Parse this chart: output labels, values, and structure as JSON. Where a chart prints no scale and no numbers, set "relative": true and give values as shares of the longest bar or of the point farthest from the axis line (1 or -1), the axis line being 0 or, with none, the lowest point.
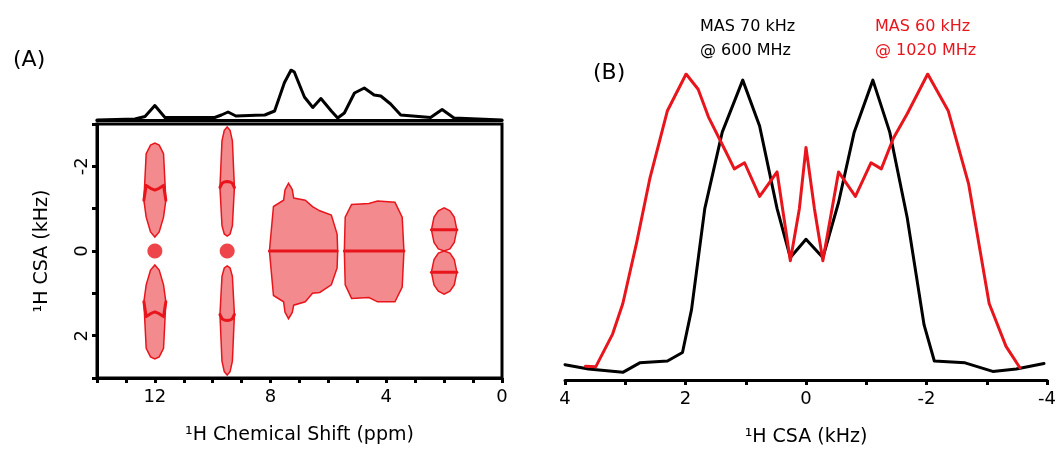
{
  "chart_data": [
    {
      "type": "line",
      "title": "(A)",
      "relative": true,
      "xlim": [
        14,
        0
      ],
      "tick_labels": false,
      "marker": "none",
      "line_style": "solid",
      "series": [
        {
          "color": "#000000",
          "x": [
            0,
            1.66,
            2.07,
            2.47,
            3.5,
            3.85,
            4.19,
            4.42,
            4.76,
            5.1,
            5.45,
            5.68,
            5.9,
            6.26,
            6.54,
            6.83,
            7.18,
            7.29,
            7.52,
            7.86,
            8.2,
            9.2,
            9.47,
            9.7,
            9.93,
            10.85,
            11.65,
            12.0,
            12.34,
            12.69,
            14
          ],
          "values": [
            0,
            0.04,
            0.21,
            0.05,
            0.1,
            0.32,
            0.48,
            0.5,
            0.64,
            0.54,
            0.14,
            0.04,
            0.18,
            0.43,
            0.25,
            0.46,
            0.96,
            1,
            0.75,
            0.18,
            0.1,
            0.08,
            0.16,
            0.1,
            0.05,
            0.05,
            0.05,
            0.29,
            0.07,
            0.02,
            0
          ]
        }
      ]
    },
    {
      "type": "line",
      "xlabel": "¹H Chemical Shift (ppm)",
      "ylabel": "¹H CSA (kHz)",
      "xlim": [
        14,
        0
      ],
      "ylim": [
        3,
        -3
      ],
      "marker": "none",
      "line_style": "solid",
      "xticks": [
        {
          "value": 14,
          "label": null
        },
        {
          "value": 13,
          "label": null
        },
        12,
        {
          "value": 11,
          "label": null
        },
        {
          "value": 10,
          "label": null
        },
        {
          "value": 9,
          "label": null
        },
        8,
        {
          "value": 7,
          "label": null
        },
        {
          "value": 6,
          "label": null
        },
        {
          "value": 5,
          "label": null
        },
        4,
        {
          "value": 3,
          "label": null
        },
        {
          "value": 2,
          "label": null
        },
        {
          "value": 1,
          "label": null
        },
        0
      ],
      "yticks": [
        {
          "value": -3,
          "label": null
        },
        -2,
        {
          "value": -1,
          "label": null
        },
        0,
        {
          "value": 1,
          "label": null
        },
        2,
        {
          "value": 3,
          "label": null
        }
      ],
      "series": [
        {
          "color": "#e8161c",
          "x": [
            12.38,
            12.3,
            12.15,
            12.0,
            11.85,
            11.7,
            11.62
          ],
          "values": [
            -1.2,
            -1.55,
            -1.48,
            -1.44,
            -1.48,
            -1.55,
            -1.2
          ],
          "lower": [
            -1.2,
            -2.3,
            -2.5,
            -2.55,
            -2.5,
            -2.3,
            -1.2
          ],
          "upper": [
            -1.2,
            -0.8,
            -0.45,
            -0.33,
            -0.45,
            -0.8,
            -1.2
          ]
        },
        {
          "type": "scatter",
          "marker": "circle",
          "color": "#e8161c",
          "x": [
            12.0,
            9.5
          ],
          "values": [
            0,
            0
          ]
        },
        {
          "color": "#e8161c",
          "x": [
            12.38,
            12.3,
            12.15,
            12.0,
            11.85,
            11.7,
            11.62
          ],
          "values": [
            1.2,
            1.55,
            1.48,
            1.44,
            1.48,
            1.55,
            1.2
          ],
          "lower": [
            1.2,
            0.8,
            0.45,
            0.33,
            0.45,
            0.8,
            1.2
          ],
          "upper": [
            1.2,
            2.3,
            2.5,
            2.55,
            2.5,
            2.3,
            1.2
          ]
        },
        {
          "color": "#e8161c",
          "x": [
            9.75,
            9.68,
            9.6,
            9.5,
            9.4,
            9.32,
            9.25
          ],
          "values": [
            -1.5,
            -1.6,
            -1.63,
            -1.64,
            -1.63,
            -1.6,
            -1.5
          ],
          "lower": [
            -1.5,
            -2.6,
            -2.85,
            -2.93,
            -2.85,
            -2.6,
            -1.5
          ],
          "upper": [
            -1.5,
            -0.6,
            -0.4,
            -0.35,
            -0.4,
            -0.6,
            -1.5
          ]
        },
        {
          "color": "#e8161c",
          "x": [
            9.75,
            9.68,
            9.6,
            9.5,
            9.4,
            9.32,
            9.25
          ],
          "values": [
            1.5,
            1.6,
            1.63,
            1.64,
            1.63,
            1.6,
            1.5
          ],
          "lower": [
            1.5,
            0.6,
            0.4,
            0.35,
            0.4,
            0.6,
            1.5
          ],
          "upper": [
            1.5,
            2.6,
            2.85,
            2.93,
            2.85,
            2.6,
            1.5
          ]
        },
        {
          "color": "#e8161c",
          "x": [
            8.04,
            7.9,
            7.55,
            7.5,
            7.38,
            7.25,
            7.2,
            6.8,
            6.55,
            6.3,
            5.9,
            5.7,
            5.68
          ],
          "values": [
            0,
            0,
            0,
            0,
            0,
            0,
            0,
            0,
            0,
            0,
            0,
            0,
            0
          ],
          "lower": [
            0,
            -1.05,
            -1.2,
            -1.45,
            -1.6,
            -1.45,
            -1.25,
            -1.2,
            -1.05,
            -0.95,
            -0.85,
            -0.4,
            0
          ],
          "upper": [
            0,
            1.05,
            1.2,
            1.45,
            1.6,
            1.45,
            1.28,
            1.2,
            1.0,
            0.98,
            0.8,
            0.4,
            0
          ]
        },
        {
          "color": "#e8161c",
          "x": [
            5.45,
            5.42,
            5.2,
            4.6,
            4.3,
            3.7,
            3.45,
            3.39
          ],
          "values": [
            0,
            0,
            0,
            0,
            0,
            0,
            0,
            0
          ],
          "lower": [
            0,
            -0.8,
            -1.1,
            -1.12,
            -1.18,
            -1.15,
            -0.8,
            0
          ],
          "upper": [
            0,
            0.8,
            1.12,
            1.1,
            1.2,
            1.2,
            0.85,
            0
          ]
        },
        {
          "color": "#e8161c",
          "x": [
            2.44,
            2.35,
            2.2,
            2.0,
            1.8,
            1.65,
            1.56
          ],
          "values": [
            -0.5,
            -0.5,
            -0.5,
            -0.5,
            -0.5,
            -0.5,
            -0.5
          ],
          "lower": [
            -0.5,
            -0.8,
            -0.95,
            -1.02,
            -0.95,
            -0.8,
            -0.5
          ],
          "upper": [
            -0.5,
            -0.2,
            -0.05,
            0,
            -0.05,
            -0.2,
            -0.5
          ]
        },
        {
          "color": "#e8161c",
          "x": [
            2.44,
            2.35,
            2.2,
            2.0,
            1.8,
            1.65,
            1.56
          ],
          "values": [
            0.5,
            0.5,
            0.5,
            0.5,
            0.5,
            0.5,
            0.5
          ],
          "lower": [
            0.5,
            0.2,
            0.05,
            0,
            0.05,
            0.2,
            0.5
          ],
          "upper": [
            0.5,
            0.8,
            0.95,
            1.02,
            0.95,
            0.8,
            0.5
          ]
        }
      ]
    },
    {
      "type": "line",
      "title": "(B)",
      "xlabel": "¹H CSA (kHz)",
      "relative": true,
      "xlim": [
        4,
        -4
      ],
      "legend": "top",
      "marker": "none",
      "line_style": "solid",
      "xticks": [
        4,
        {
          "value": 3,
          "label": null
        },
        2,
        {
          "value": 1,
          "label": null
        },
        0,
        {
          "value": -1,
          "label": null
        },
        -2,
        {
          "value": -3,
          "label": null
        },
        -4
      ],
      "series": [
        {
          "name": "MAS 70 kHz @ 600 MHz",
          "color": "#000000",
          "x": [
            4,
            3.61,
            3.04,
            2.76,
            2.3,
            2.05,
            1.9,
            1.68,
            1.39,
            1.05,
            0.77,
            0.48,
            0.26,
            0,
            -0.28,
            -0.54,
            -0.8,
            -1.11,
            -1.39,
            -1.68,
            -1.96,
            -2.13,
            -2.64,
            -3.1,
            -3.49,
            -3.95
          ],
          "values": [
            0.05,
            0.036,
            0.025,
            0.056,
            0.062,
            0.09,
            0.23,
            0.56,
            0.81,
            0.98,
            0.83,
            0.56,
            0.4,
            0.46,
            0.4,
            0.58,
            0.81,
            0.98,
            0.81,
            0.53,
            0.18,
            0.062,
            0.056,
            0.028,
            0.036,
            0.054
          ]
        },
        {
          "name": "MAS 60 kHz @ 1020 MHz",
          "color": "#e8161c",
          "x": [
            3.66,
            3.49,
            3.21,
            3.04,
            2.81,
            2.59,
            2.3,
            1.99,
            1.79,
            1.62,
            1.34,
            1.19,
            1.02,
            0.77,
            0.48,
            0.26,
            0.11,
            0,
            -0.14,
            -0.28,
            -0.54,
            -0.82,
            -1.08,
            -1.25,
            -1.45,
            -1.68,
            -2.02,
            -2.36,
            -2.7,
            -3.04,
            -3.32,
            -3.55
          ],
          "values": [
            0.045,
            0.043,
            0.15,
            0.25,
            0.45,
            0.66,
            0.88,
            1,
            0.95,
            0.86,
            0.75,
            0.69,
            0.71,
            0.6,
            0.68,
            0.39,
            0.56,
            0.76,
            0.56,
            0.39,
            0.68,
            0.6,
            0.71,
            0.69,
            0.79,
            0.87,
            1,
            0.88,
            0.64,
            0.25,
            0.11,
            0.04
          ]
        }
      ]
    }
  ]
}
